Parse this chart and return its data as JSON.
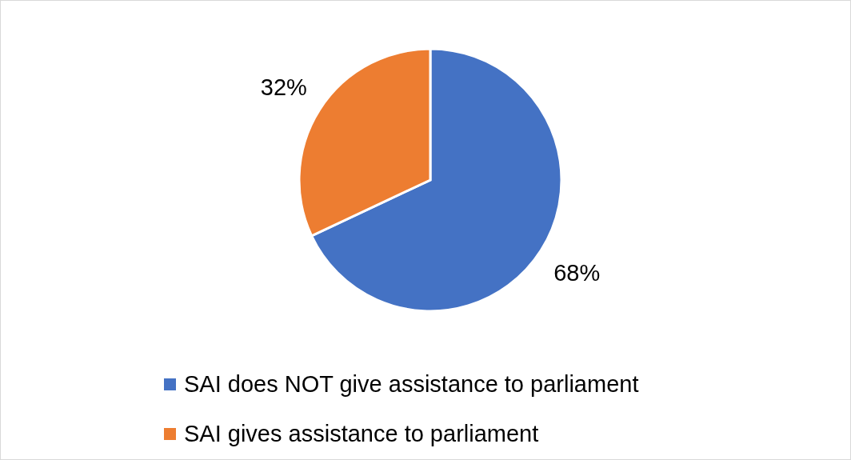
{
  "chart_data": {
    "type": "pie",
    "categories": [
      "SAI does NOT give assistance to parliament",
      "SAI gives assistance to parliament"
    ],
    "values": [
      68,
      32
    ],
    "colors": [
      "#4472c4",
      "#ed7d31"
    ],
    "value_labels": [
      "68%",
      "32%"
    ],
    "legend": "bottom"
  }
}
